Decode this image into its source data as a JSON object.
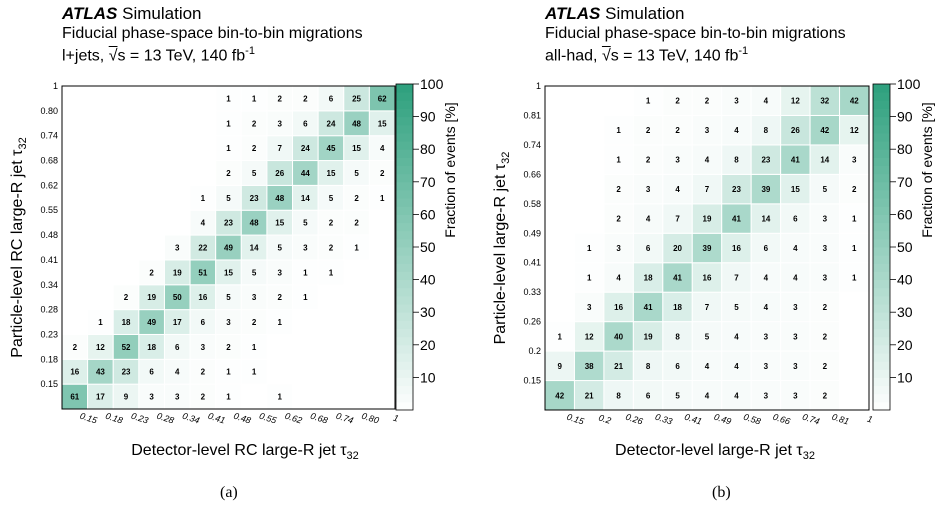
{
  "chart_data": [
    {
      "type": "heatmap",
      "panel_label": "(a)",
      "experiment": "ATLAS",
      "experiment_suffix": "Simulation",
      "title": "Fiducial phase-space bin-to-bin migrations",
      "subtitle_prefix": "l+jets,",
      "subtitle_suffix": "s = 13 TeV, 140 fb",
      "subtitle_sup": "-1",
      "xlabel": "Detector-level RC large-R jet τ",
      "xlabel_sub": "32",
      "ylabel": "Particle-level RC large-R jet τ",
      "ylabel_sub": "32",
      "colorbar_label": "Fraction of events [%]",
      "colorbar_ticks": [
        10,
        20,
        30,
        40,
        50,
        60,
        70,
        80,
        90,
        100
      ],
      "colorbar_range": [
        0,
        100
      ],
      "x_tick_labels": [
        "0.15",
        "0.18",
        "0.23",
        "0.28",
        "0.34",
        "0.41",
        "0.48",
        "0.55",
        "0.62",
        "0.68",
        "0.74",
        "0.80",
        "1"
      ],
      "y_tick_labels": [
        "0.15",
        "0.18",
        "0.23",
        "0.28",
        "0.34",
        "0.41",
        "0.48",
        "0.55",
        "0.62",
        "0.68",
        "0.74",
        "0.80",
        "1"
      ],
      "matrix_rows_bottom_to_top": [
        [
          61,
          17,
          9,
          3,
          3,
          2,
          1,
          null,
          1,
          null,
          null,
          null,
          null
        ],
        [
          16,
          43,
          23,
          6,
          4,
          2,
          1,
          1,
          null,
          null,
          null,
          null,
          null
        ],
        [
          2,
          12,
          52,
          18,
          6,
          3,
          2,
          1,
          null,
          null,
          null,
          null,
          null
        ],
        [
          null,
          1,
          18,
          49,
          17,
          6,
          3,
          2,
          1,
          null,
          null,
          null,
          null
        ],
        [
          null,
          null,
          2,
          19,
          50,
          16,
          5,
          3,
          2,
          1,
          null,
          null,
          null
        ],
        [
          null,
          null,
          null,
          2,
          19,
          51,
          15,
          5,
          3,
          1,
          1,
          null,
          null
        ],
        [
          null,
          null,
          null,
          null,
          3,
          22,
          49,
          14,
          5,
          3,
          2,
          1,
          null
        ],
        [
          null,
          null,
          null,
          null,
          null,
          4,
          23,
          48,
          15,
          5,
          2,
          2,
          null
        ],
        [
          null,
          null,
          null,
          null,
          null,
          1,
          5,
          23,
          48,
          14,
          5,
          2,
          1
        ],
        [
          null,
          null,
          null,
          null,
          null,
          null,
          2,
          5,
          26,
          44,
          15,
          5,
          2
        ],
        [
          null,
          null,
          null,
          null,
          null,
          null,
          1,
          2,
          7,
          24,
          45,
          15,
          4
        ],
        [
          null,
          null,
          null,
          null,
          null,
          null,
          1,
          2,
          3,
          6,
          24,
          48,
          15
        ],
        [
          null,
          null,
          null,
          null,
          null,
          null,
          1,
          1,
          2,
          2,
          6,
          25,
          62
        ]
      ]
    },
    {
      "type": "heatmap",
      "panel_label": "(b)",
      "experiment": "ATLAS",
      "experiment_suffix": "Simulation",
      "title": "Fiducial phase-space bin-to-bin migrations",
      "subtitle_prefix": "all-had,",
      "subtitle_suffix": "s = 13 TeV, 140 fb",
      "subtitle_sup": "-1",
      "xlabel": "Detector-level large-R jet τ",
      "xlabel_sub": "32",
      "ylabel": "Particle-level large-R jet τ",
      "ylabel_sub": "32",
      "colorbar_label": "Fraction of events [%]",
      "colorbar_ticks": [
        10,
        20,
        30,
        40,
        50,
        60,
        70,
        80,
        90,
        100
      ],
      "colorbar_range": [
        0,
        100
      ],
      "x_tick_labels": [
        "0.15",
        "0.2",
        "0.26",
        "0.33",
        "0.41",
        "0.49",
        "0.58",
        "0.66",
        "0.74",
        "0.81",
        "1"
      ],
      "y_tick_labels": [
        "0.15",
        "0.2",
        "0.26",
        "0.33",
        "0.41",
        "0.49",
        "0.58",
        "0.66",
        "0.74",
        "0.81",
        "1"
      ],
      "matrix_rows_bottom_to_top": [
        [
          42,
          21,
          8,
          6,
          5,
          4,
          4,
          3,
          3,
          2,
          null
        ],
        [
          9,
          38,
          21,
          8,
          6,
          4,
          4,
          3,
          3,
          2,
          null
        ],
        [
          1,
          12,
          40,
          19,
          8,
          5,
          4,
          3,
          3,
          2,
          null
        ],
        [
          null,
          3,
          16,
          41,
          18,
          7,
          5,
          4,
          3,
          2,
          null
        ],
        [
          null,
          1,
          4,
          18,
          41,
          16,
          7,
          4,
          4,
          3,
          1
        ],
        [
          null,
          1,
          3,
          6,
          20,
          39,
          16,
          6,
          4,
          3,
          1
        ],
        [
          null,
          null,
          2,
          4,
          7,
          19,
          41,
          14,
          6,
          3,
          1
        ],
        [
          null,
          null,
          2,
          3,
          4,
          7,
          23,
          39,
          15,
          5,
          2
        ],
        [
          null,
          null,
          1,
          2,
          3,
          4,
          8,
          23,
          41,
          14,
          3
        ],
        [
          null,
          null,
          1,
          2,
          2,
          3,
          4,
          8,
          26,
          42,
          12
        ],
        [
          null,
          null,
          null,
          1,
          2,
          2,
          3,
          4,
          12,
          32,
          42
        ]
      ]
    }
  ]
}
